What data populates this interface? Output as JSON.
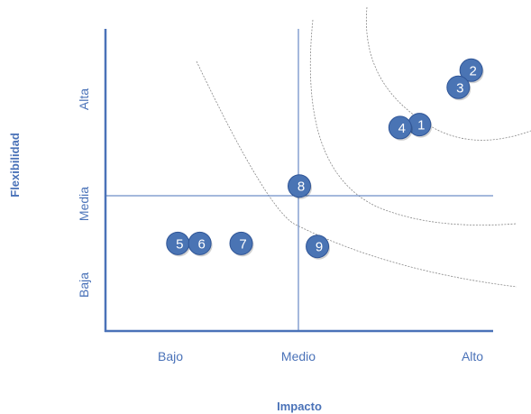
{
  "chart_data": {
    "type": "scatter",
    "title": "",
    "xlabel": "Impacto",
    "ylabel": "Flexibilidad",
    "x_tick_labels": [
      "Bajo",
      "Medio",
      "Alto"
    ],
    "y_tick_labels": [
      "Baja",
      "Media",
      "Alta"
    ],
    "xlim": [
      0,
      3
    ],
    "ylim": [
      0,
      3
    ],
    "grid": false,
    "legend": "none",
    "points": [
      {
        "label": "1",
        "x": 2.43,
        "y": 2.05
      },
      {
        "label": "2",
        "x": 2.83,
        "y": 2.59
      },
      {
        "label": "3",
        "x": 2.73,
        "y": 2.42
      },
      {
        "label": "4",
        "x": 2.28,
        "y": 2.02
      },
      {
        "label": "5",
        "x": 0.56,
        "y": 0.87
      },
      {
        "label": "6",
        "x": 0.73,
        "y": 0.87
      },
      {
        "label": "7",
        "x": 1.05,
        "y": 0.87
      },
      {
        "label": "8",
        "x": 1.5,
        "y": 1.44
      },
      {
        "label": "9",
        "x": 1.64,
        "y": 0.84
      }
    ],
    "colors": {
      "axis": "#4a72b8",
      "marker": "#4a74b4",
      "marker_edge": "#2f5597",
      "marker_text": "#ffffff",
      "tick_text": "#4a72b8",
      "axis_title": "#4a72b8",
      "curves": "#888888"
    }
  }
}
